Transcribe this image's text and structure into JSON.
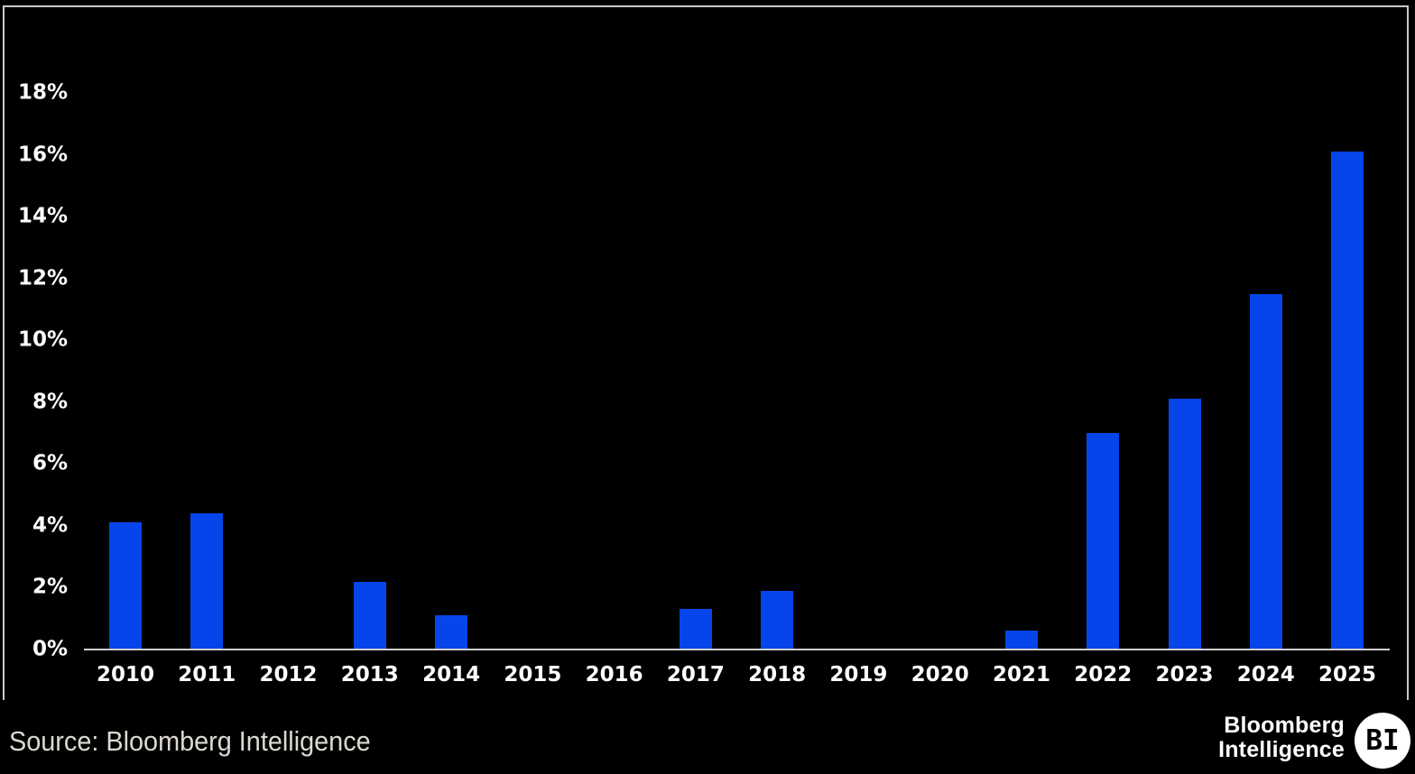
{
  "colors": {
    "background": "#000000",
    "bar": "#0545ea",
    "frame": "#c9c9c9",
    "axis": "#cfcfcf",
    "tick_text": "#ffffff",
    "source_text": "#dcd9d2",
    "logo_text": "#ffffff",
    "badge_bg": "#ffffff",
    "badge_text": "#000000"
  },
  "chart_data": {
    "type": "bar",
    "categories": [
      "2010",
      "2011",
      "2012",
      "2013",
      "2014",
      "2015",
      "2016",
      "2017",
      "2018",
      "2019",
      "2020",
      "2021",
      "2022",
      "2023",
      "2024",
      "2025"
    ],
    "values": [
      4.1,
      4.4,
      0,
      2.2,
      1.1,
      0,
      0,
      1.3,
      1.9,
      0,
      0,
      0.6,
      7.0,
      8.1,
      11.5,
      16.1
    ],
    "title": "",
    "xlabel": "",
    "ylabel": "",
    "ylim": [
      0,
      18
    ],
    "ytick_values": [
      0,
      2,
      4,
      6,
      8,
      10,
      12,
      14,
      16,
      18
    ],
    "ytick_labels": [
      "0%",
      "2%",
      "4%",
      "6%",
      "8%",
      "10%",
      "12%",
      "14%",
      "16%",
      "18%"
    ],
    "grid": false,
    "legend": false,
    "background": "black",
    "bar_color": "#0545ea"
  },
  "footer": {
    "source": "Source: Bloomberg Intelligence",
    "logo_line1": "Bloomberg",
    "logo_line2": "Intelligence",
    "badge": "BI"
  }
}
